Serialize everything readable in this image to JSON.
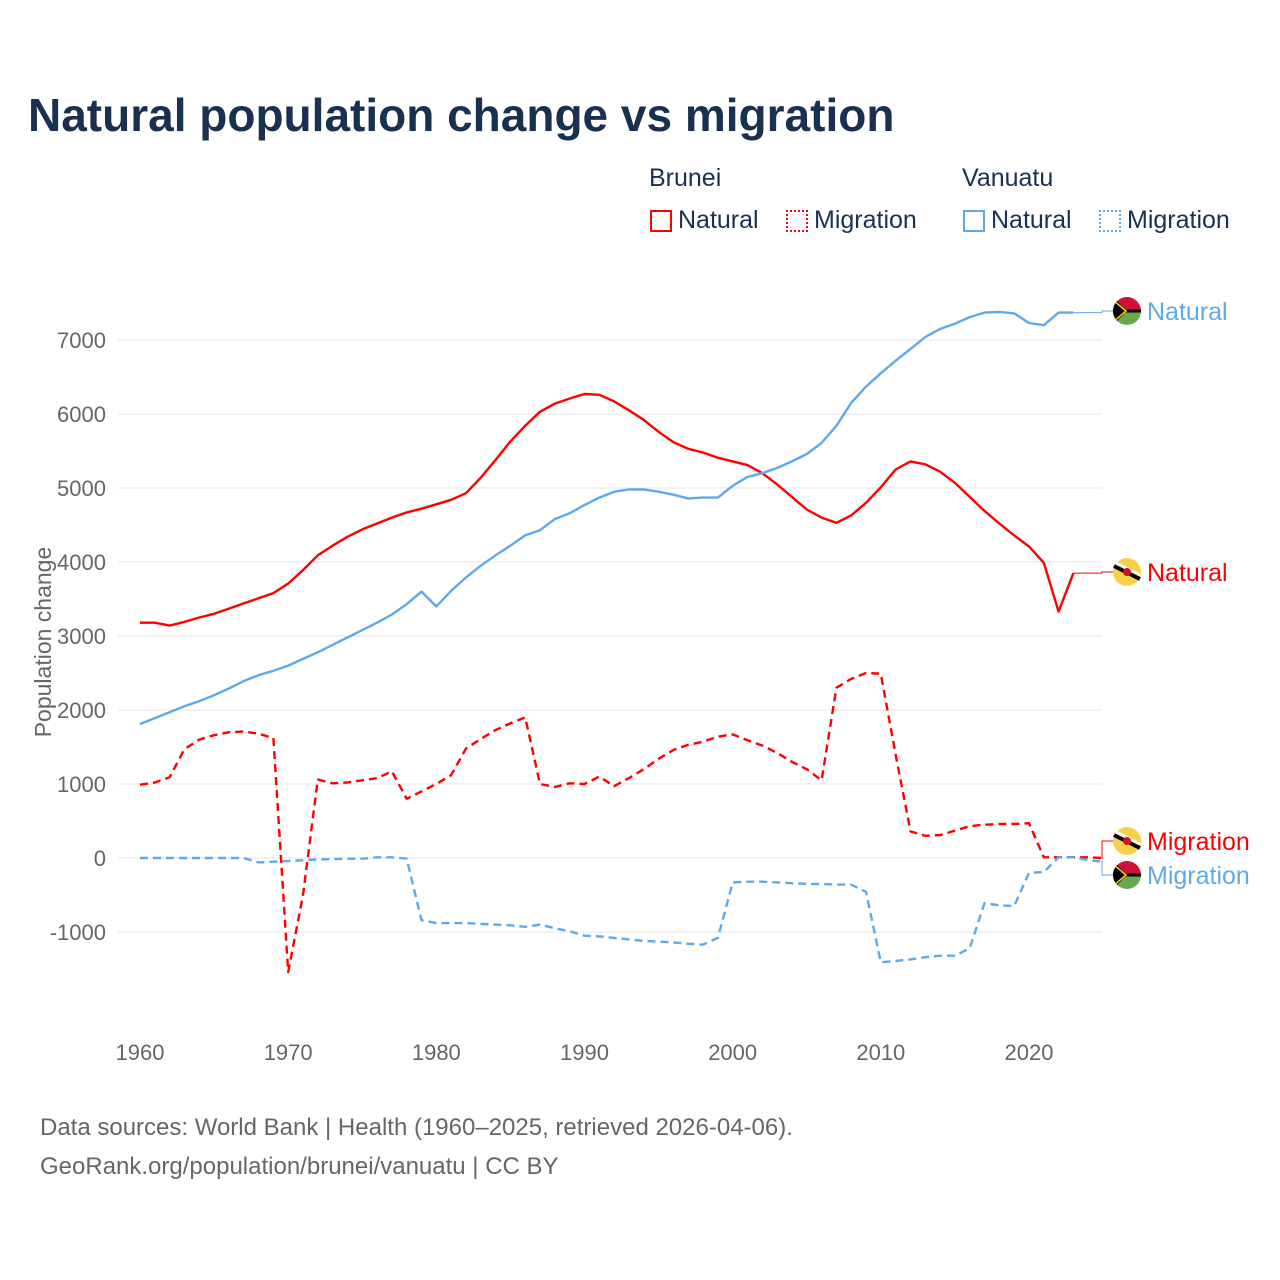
{
  "chart_data": {
    "type": "line",
    "title": "Natural population change vs migration",
    "xlabel": "",
    "ylabel": "Population change",
    "xlim": [
      1960,
      2025
    ],
    "ylim": [
      -1900,
      7600
    ],
    "x_ticks": [
      "1960",
      "1970",
      "1980",
      "1990",
      "2000",
      "2010",
      "2020"
    ],
    "y_ticks": [
      "-1000",
      "0",
      "1000",
      "2000",
      "3000",
      "4000",
      "5000",
      "6000",
      "7000"
    ],
    "grid": true,
    "legend_groups": [
      "Brunei",
      "Vanuatu"
    ],
    "series": [
      {
        "name": "Natural",
        "country": "Brunei",
        "color": "#ff0000",
        "dash": false,
        "end_label": "Natural",
        "start": 1960,
        "values": [
          3180,
          3180,
          3140,
          3190,
          3250,
          3300,
          3370,
          3440,
          3510,
          3580,
          3710,
          3890,
          4090,
          4220,
          4340,
          4440,
          4520,
          4600,
          4670,
          4720,
          4780,
          4840,
          4930,
          5140,
          5380,
          5630,
          5840,
          6030,
          6140,
          6210,
          6270,
          6260,
          6170,
          6050,
          5920,
          5760,
          5620,
          5530,
          5480,
          5410,
          5360,
          5310,
          5200,
          5050,
          4880,
          4710,
          4600,
          4530,
          4630,
          4800,
          5010,
          5250,
          5360,
          5320,
          5220,
          5070,
          4880,
          4690,
          4520,
          4360,
          4210,
          3990,
          3330,
          3850
        ]
      },
      {
        "name": "Migration",
        "country": "Brunei",
        "color": "#ff0000",
        "dash": true,
        "end_label": "Migration",
        "start": 1960,
        "values": [
          990,
          1020,
          1090,
          1470,
          1600,
          1660,
          1700,
          1710,
          1680,
          1620,
          -1540,
          -500,
          1060,
          1010,
          1020,
          1050,
          1080,
          1170,
          800,
          900,
          1000,
          1120,
          1480,
          1610,
          1730,
          1820,
          1900,
          1000,
          960,
          1010,
          1000,
          1100,
          970,
          1080,
          1200,
          1340,
          1460,
          1530,
          1570,
          1640,
          1670,
          1590,
          1520,
          1420,
          1300,
          1200,
          1050,
          2300,
          2420,
          2500,
          2490,
          1400,
          360,
          300,
          310,
          370,
          430,
          450,
          460,
          460,
          470,
          10,
          10,
          10,
          10,
          0
        ]
      },
      {
        "name": "Natural",
        "country": "Vanuatu",
        "color": "#5ea8ee",
        "dash": false,
        "end_label": "Natural",
        "start": 1960,
        "values": [
          1810,
          1890,
          1970,
          2050,
          2120,
          2200,
          2290,
          2390,
          2470,
          2530,
          2600,
          2690,
          2780,
          2880,
          2980,
          3080,
          3180,
          3290,
          3430,
          3600,
          3400,
          3610,
          3790,
          3950,
          4090,
          4220,
          4360,
          4430,
          4580,
          4660,
          4770,
          4870,
          4950,
          4980,
          4980,
          4950,
          4910,
          4860,
          4870,
          4870,
          5030,
          5150,
          5200,
          5270,
          5360,
          5460,
          5610,
          5840,
          6150,
          6370,
          6550,
          6720,
          6880,
          7040,
          7150,
          7220,
          7310,
          7370,
          7380,
          7360,
          7230,
          7200,
          7370,
          7370
        ]
      },
      {
        "name": "Migration",
        "country": "Vanuatu",
        "color": "#5ea8ee",
        "dash": true,
        "end_label": "Migration",
        "start": 1960,
        "values": [
          0,
          0,
          0,
          0,
          0,
          0,
          0,
          0,
          -60,
          -50,
          -40,
          -30,
          -20,
          -15,
          -10,
          -10,
          10,
          10,
          -10,
          -840,
          -880,
          -880,
          -880,
          -890,
          -900,
          -910,
          -930,
          -900,
          -950,
          -990,
          -1050,
          -1060,
          -1080,
          -1100,
          -1120,
          -1130,
          -1140,
          -1160,
          -1170,
          -1080,
          -330,
          -320,
          -320,
          -330,
          -340,
          -350,
          -350,
          -360,
          -360,
          -460,
          -1410,
          -1390,
          -1370,
          -1340,
          -1320,
          -1320,
          -1220,
          -610,
          -640,
          -650,
          -200,
          -190,
          10,
          10,
          -30,
          -50
        ]
      }
    ]
  },
  "source": {
    "line1": "Data sources: World Bank | Health (1960–2025, retrieved 2026-04-06).",
    "line2": "GeoRank.org/population/brunei/vanuatu | CC BY"
  }
}
